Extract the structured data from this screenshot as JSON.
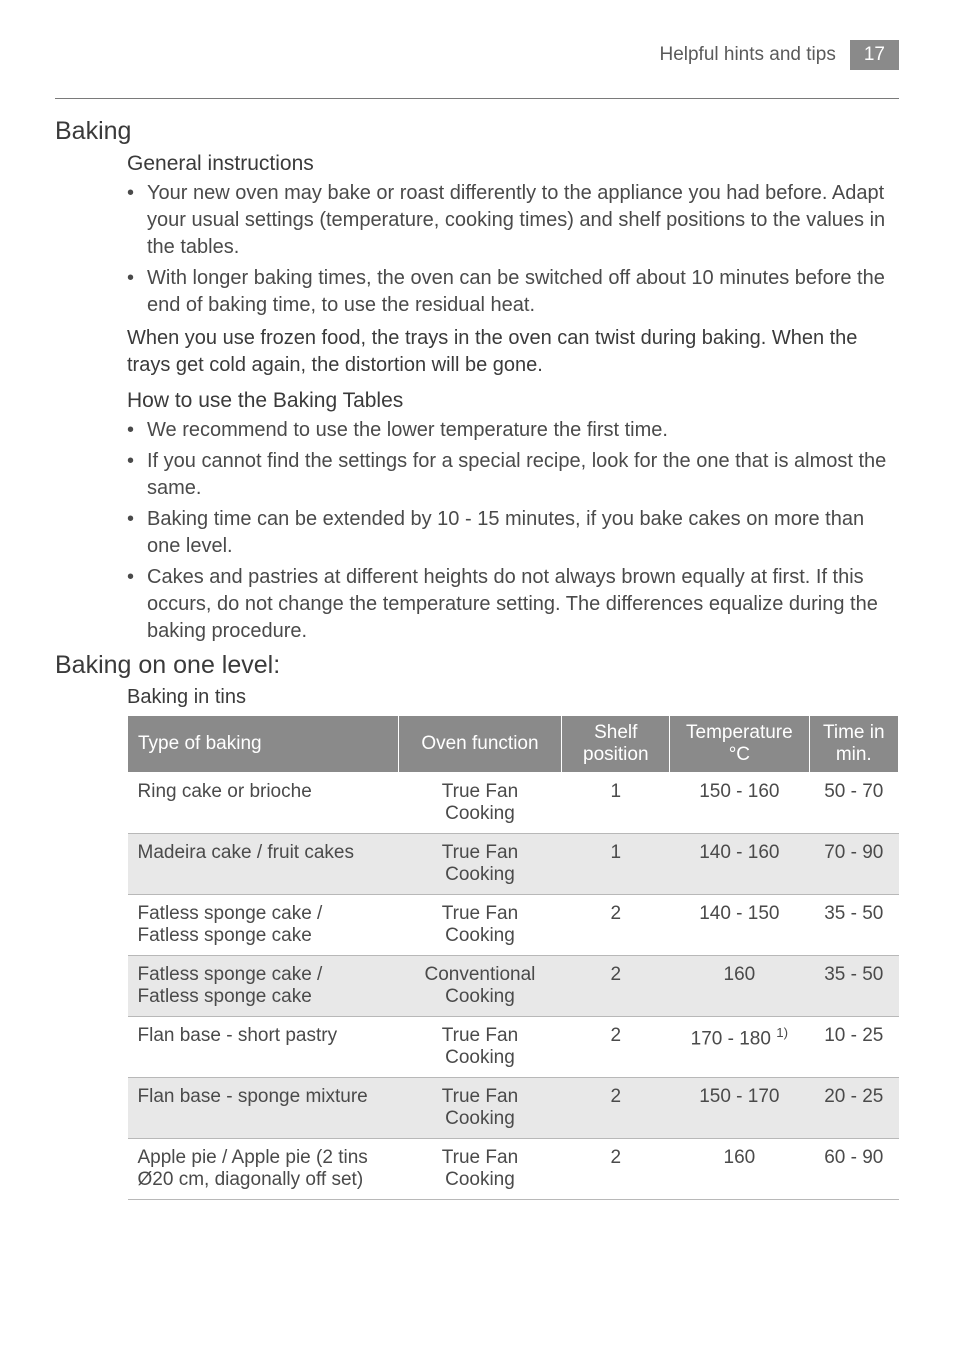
{
  "header": {
    "section_label": "Helpful hints and tips",
    "page_number": "17"
  },
  "baking": {
    "title": "Baking",
    "general": {
      "heading": "General instructions",
      "items": [
        "Your new oven may bake or roast differently to the appliance you had before. Adapt your usual settings (temperature, cooking times) and shelf positions to the values in the tables.",
        "With longer baking times, the oven can be switched off about 10 minutes before the end of baking time, to use the residual heat."
      ],
      "note": "When you use frozen food, the trays in the oven can twist during baking. When the trays get cold again, the distortion will be gone."
    },
    "howto": {
      "heading": "How to use the Baking Tables",
      "items": [
        "We recommend to use the lower temperature the first time.",
        "If you cannot find the settings for a special recipe, look for the one that is almost the same.",
        "Baking time can be extended by 10 - 15 minutes, if you bake cakes on more than one level.",
        "Cakes and pastries at different heights do not always brown equally at first. If this occurs, do not change the temperature setting. The differences equalize during the baking procedure."
      ]
    }
  },
  "one_level": {
    "title": "Baking on one level:",
    "caption": "Baking in tins",
    "columns": [
      "Type of baking",
      "Oven function",
      "Shelf position",
      "Temperature °C",
      "Time in min."
    ],
    "rows": [
      {
        "type": "Ring cake or brioche",
        "func": "True Fan Cooking",
        "shelf": "1",
        "temp": "150 - 160",
        "time": "50 - 70"
      },
      {
        "type": "Madeira cake / fruit cakes",
        "func": "True Fan Cooking",
        "shelf": "1",
        "temp": "140 - 160",
        "time": "70 - 90"
      },
      {
        "type": "Fatless sponge cake / Fatless sponge cake",
        "func": "True Fan Cooking",
        "shelf": "2",
        "temp": "140 - 150",
        "time": "35 - 50"
      },
      {
        "type": "Fatless sponge cake / Fatless sponge cake",
        "func": "Conventional Cooking",
        "shelf": "2",
        "temp": "160",
        "time": "35 - 50"
      },
      {
        "type": "Flan base - short pastry",
        "func": "True Fan Cooking",
        "shelf": "2",
        "temp_html": "170 - 180 <sup>1)</sup>",
        "time": "10 - 25"
      },
      {
        "type": "Flan base - sponge mixture",
        "func": "True Fan Cooking",
        "shelf": "2",
        "temp": "150 - 170",
        "time": "20 - 25"
      },
      {
        "type": "Apple pie / Apple pie (2 tins Ø20 cm, diagonally off set)",
        "func": "True Fan Cooking",
        "shelf": "2",
        "temp": "160",
        "time": "60 - 90"
      }
    ]
  }
}
